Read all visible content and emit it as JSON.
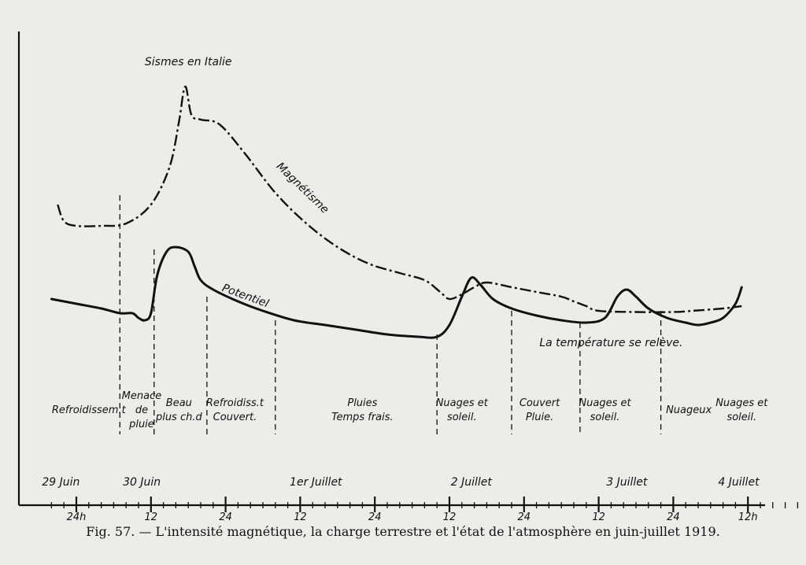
{
  "chart_data": {
    "type": "line",
    "caption": "Fig. 57. — L'intensité magnétique, la charge terrestre et l'état de l'atmosphère en juin-juillet 1919.",
    "x_unit": "hours",
    "x_range": [
      -4,
      132
    ],
    "x_ticks": [
      {
        "x": 0,
        "label": "24h"
      },
      {
        "x": 12,
        "label": "12"
      },
      {
        "x": 24,
        "label": "24"
      },
      {
        "x": 36,
        "label": "12"
      },
      {
        "x": 48,
        "label": "24"
      },
      {
        "x": 60,
        "label": "12"
      },
      {
        "x": 72,
        "label": "24"
      },
      {
        "x": 84,
        "label": "12"
      },
      {
        "x": 96,
        "label": "24"
      },
      {
        "x": 108,
        "label": "12h"
      }
    ],
    "day_labels": [
      {
        "x": -4,
        "label": "29 Juin"
      },
      {
        "x": 9,
        "label": "30 Juin"
      },
      {
        "x": 37,
        "label": "1er Juillet"
      },
      {
        "x": 62,
        "label": "2 Juillet"
      },
      {
        "x": 87,
        "label": "3 Juillet"
      },
      {
        "x": 105,
        "label": "4 Juillet"
      }
    ],
    "series": [
      {
        "name": "Magnétisme",
        "style": "dash-dot",
        "points": [
          [
            -3,
            40
          ],
          [
            -2,
            33
          ],
          [
            0,
            31
          ],
          [
            4,
            31
          ],
          [
            8,
            32
          ],
          [
            12,
            40
          ],
          [
            15,
            56
          ],
          [
            16.5,
            75
          ],
          [
            17.5,
            90
          ],
          [
            18.5,
            78
          ],
          [
            20,
            76
          ],
          [
            23,
            74
          ],
          [
            27,
            62
          ],
          [
            32,
            45
          ],
          [
            37,
            32
          ],
          [
            42,
            22
          ],
          [
            47,
            15
          ],
          [
            52,
            11
          ],
          [
            56,
            8
          ],
          [
            58.5,
            3
          ],
          [
            60,
            0
          ],
          [
            62,
            2
          ],
          [
            64,
            5
          ],
          [
            66,
            7
          ],
          [
            70,
            5
          ],
          [
            74,
            3
          ],
          [
            78,
            1
          ],
          [
            80,
            -1
          ],
          [
            82,
            -3
          ],
          [
            84,
            -5
          ],
          [
            90,
            -5.5
          ],
          [
            96,
            -5.5
          ],
          [
            99,
            -5
          ],
          [
            104,
            -4
          ],
          [
            107,
            -3
          ]
        ]
      },
      {
        "name": "Potentiel",
        "style": "solid",
        "points": [
          [
            -4,
            0
          ],
          [
            0,
            -2
          ],
          [
            4,
            -4
          ],
          [
            7,
            -6
          ],
          [
            9,
            -6
          ],
          [
            10,
            -8
          ],
          [
            11,
            -9
          ],
          [
            12,
            -6
          ],
          [
            13,
            10
          ],
          [
            14.5,
            20
          ],
          [
            16,
            22
          ],
          [
            18,
            20
          ],
          [
            19,
            14
          ],
          [
            20,
            8
          ],
          [
            22,
            4
          ],
          [
            26,
            -1
          ],
          [
            30,
            -5
          ],
          [
            35,
            -9
          ],
          [
            40,
            -11
          ],
          [
            45,
            -13
          ],
          [
            50,
            -15
          ],
          [
            55,
            -16
          ],
          [
            58,
            -16
          ],
          [
            60,
            -11
          ],
          [
            62,
            1
          ],
          [
            63.5,
            9
          ],
          [
            65,
            6
          ],
          [
            67,
            0
          ],
          [
            70,
            -4
          ],
          [
            74,
            -7
          ],
          [
            78,
            -9
          ],
          [
            82,
            -10
          ],
          [
            85,
            -8
          ],
          [
            87,
            1
          ],
          [
            88.5,
            4
          ],
          [
            90,
            1
          ],
          [
            92,
            -4
          ],
          [
            95,
            -8
          ],
          [
            98,
            -10
          ],
          [
            100,
            -11
          ],
          [
            102,
            -10
          ],
          [
            104,
            -8
          ],
          [
            106,
            -2
          ],
          [
            107,
            5
          ]
        ]
      }
    ],
    "annotations": [
      {
        "label": "Sismes en Italie",
        "x": 18,
        "y": 99
      },
      {
        "label": "Magnétisme",
        "x": 36,
        "y": 46
      },
      {
        "label": "Potentiel",
        "x": 27,
        "y": 0
      },
      {
        "label": "La température se relève.",
        "x": 86,
        "y": -20
      }
    ],
    "periods": [
      {
        "lines": [
          "Refroidissem.t"
        ],
        "x": 2
      },
      {
        "lines": [
          "Menace",
          "de",
          "pluie"
        ],
        "x": 10.5
      },
      {
        "lines": [
          "Beau",
          "plus ch.d"
        ],
        "x": 16.5
      },
      {
        "lines": [
          "Refroidiss.t",
          "Couvert."
        ],
        "x": 25.5
      },
      {
        "lines": [
          "Pluies",
          "Temps frais."
        ],
        "x": 46
      },
      {
        "lines": [
          "Nuages et",
          "soleil."
        ],
        "x": 62
      },
      {
        "lines": [
          "Couvert",
          "Pluie."
        ],
        "x": 74.5
      },
      {
        "lines": [
          "Nuages et",
          "soleil."
        ],
        "x": 85
      },
      {
        "lines": [
          "Nuageux"
        ],
        "x": 98.5
      },
      {
        "lines": [
          "Nuages et",
          "soleil."
        ],
        "x": 107
      }
    ],
    "dividers": [
      {
        "x": 7,
        "top": 44
      },
      {
        "x": 12.5,
        "top": 21
      },
      {
        "x": 21,
        "top": 1
      },
      {
        "x": 32,
        "top": -9
      },
      {
        "x": 58,
        "top": -15
      },
      {
        "x": 70,
        "top": -5
      },
      {
        "x": 81,
        "top": -10
      },
      {
        "x": 94,
        "top": -5
      }
    ]
  }
}
